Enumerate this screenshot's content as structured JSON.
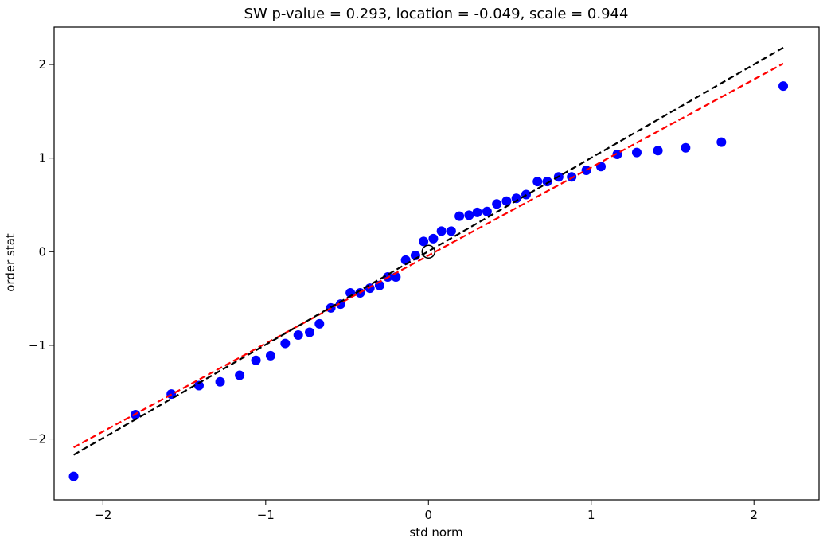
{
  "chart_data": {
    "type": "scatter",
    "title": "SW p-value = 0.293, location = -0.049, scale = 0.944",
    "xlabel": "std norm",
    "ylabel": "order stat",
    "xlim": [
      -2.3,
      2.4
    ],
    "ylim": [
      -2.65,
      2.4
    ],
    "x_ticks": [
      -2,
      -1,
      0,
      1,
      2
    ],
    "y_ticks": [
      -2,
      -1,
      0,
      1,
      2
    ],
    "x_tick_labels": [
      "−2",
      "−1",
      "0",
      "1",
      "2"
    ],
    "y_tick_labels": [
      "−2",
      "−1",
      "0",
      "1",
      "2"
    ],
    "grid": false,
    "colors": {
      "points": "#0000ff",
      "reference_line": "#ff0000",
      "fit_line": "#000000",
      "origin_marker": "#000000"
    },
    "series": [
      {
        "kind": "points",
        "x": [
          -2.18,
          -1.8,
          -1.58,
          -1.41,
          -1.28,
          -1.16,
          -1.06,
          -0.97,
          -0.88,
          -0.8,
          -0.73,
          -0.67,
          -0.6,
          -0.54,
          -0.48,
          -0.42,
          -0.36,
          -0.3,
          -0.25,
          -0.2,
          -0.14,
          -0.08,
          -0.03,
          0.03,
          0.08,
          0.14,
          0.19,
          0.25,
          0.3,
          0.36,
          0.42,
          0.48,
          0.54,
          0.6,
          0.67,
          0.73,
          0.8,
          0.88,
          0.97,
          1.06,
          1.16,
          1.28,
          1.41,
          1.58,
          1.8,
          2.18
        ],
        "y": [
          -2.4,
          -1.74,
          -1.52,
          -1.43,
          -1.39,
          -1.32,
          -1.16,
          -1.11,
          -0.98,
          -0.89,
          -0.86,
          -0.77,
          -0.6,
          -0.56,
          -0.44,
          -0.44,
          -0.39,
          -0.36,
          -0.27,
          -0.27,
          -0.09,
          -0.04,
          0.11,
          0.14,
          0.22,
          0.22,
          0.38,
          0.39,
          0.42,
          0.43,
          0.51,
          0.54,
          0.57,
          0.61,
          0.75,
          0.75,
          0.8,
          0.8,
          0.87,
          0.91,
          1.04,
          1.06,
          1.08,
          1.11,
          1.17,
          1.77
        ]
      },
      {
        "kind": "line",
        "style": "dashed",
        "color": "reference_line",
        "x": [
          -2.18,
          2.18
        ],
        "y": [
          -2.09,
          2.01
        ]
      },
      {
        "kind": "line",
        "style": "dashed",
        "color": "fit_line",
        "x": [
          -2.18,
          2.18
        ],
        "y": [
          -2.17,
          2.18
        ]
      }
    ],
    "origin_marker": {
      "x": 0,
      "y": 0
    }
  }
}
